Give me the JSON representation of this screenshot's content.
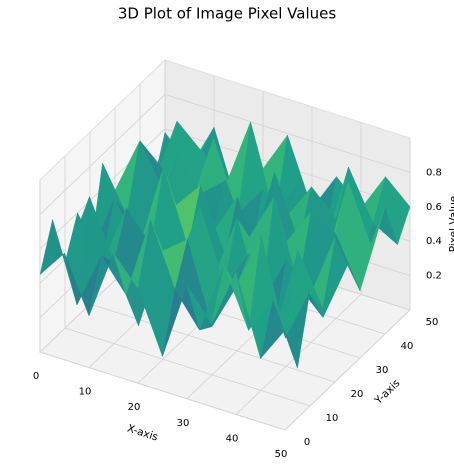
{
  "chart_data": {
    "type": "surface",
    "title": "3D Plot of Image Pixel Values",
    "xlabel": "X-axis",
    "ylabel": "Y-axis",
    "zlabel": "Pixel Value",
    "colormap": "viridis",
    "x": [
      0,
      5,
      10,
      15,
      20,
      25,
      30,
      35,
      40,
      45,
      50
    ],
    "y": [
      0,
      5,
      10,
      15,
      20,
      25,
      30,
      35,
      40,
      45,
      50
    ],
    "z": [
      [
        0.45,
        0.62,
        0.3,
        0.71,
        0.55,
        0.2,
        0.66,
        0.48,
        0.83,
        0.37,
        0.58
      ],
      [
        0.7,
        0.25,
        0.58,
        0.4,
        0.88,
        0.52,
        0.33,
        0.75,
        0.42,
        0.64,
        0.29
      ],
      [
        0.38,
        0.81,
        0.47,
        0.15,
        0.63,
        0.74,
        0.28,
        0.56,
        0.9,
        0.35,
        0.67
      ],
      [
        0.6,
        0.34,
        0.72,
        0.55,
        0.27,
        0.86,
        0.45,
        0.68,
        0.23,
        0.79,
        0.5
      ],
      [
        0.28,
        0.66,
        0.42,
        0.93,
        0.51,
        0.36,
        0.77,
        0.31,
        0.62,
        0.46,
        0.84
      ],
      [
        0.75,
        0.49,
        0.18,
        0.64,
        0.8,
        0.44,
        0.59,
        0.87,
        0.4,
        0.26,
        0.61
      ],
      [
        0.52,
        0.85,
        0.6,
        0.33,
        0.46,
        0.71,
        0.22,
        0.54,
        0.76,
        0.68,
        0.39
      ],
      [
        0.41,
        0.3,
        0.78,
        0.57,
        0.69,
        0.25,
        0.83,
        0.47,
        0.35,
        0.91,
        0.56
      ],
      [
        0.67,
        0.54,
        0.36,
        0.82,
        0.43,
        0.61,
        0.5,
        0.72,
        0.58,
        0.32,
        0.74
      ],
      [
        0.33,
        0.76,
        0.63,
        0.48,
        0.89,
        0.38,
        0.65,
        0.29,
        0.81,
        0.53,
        0.45
      ],
      [
        0.58,
        0.42,
        0.7,
        0.27,
        0.55,
        0.79,
        0.41,
        0.64,
        0.5,
        0.73,
        0.6
      ]
    ],
    "xlim": [
      0,
      50
    ],
    "ylim": [
      0,
      50
    ],
    "zlim": [
      0,
      1
    ],
    "xticks": [
      0,
      10,
      20,
      30,
      40,
      50
    ],
    "yticks": [
      0,
      10,
      20,
      30,
      40,
      50
    ],
    "zticks": [
      0.2,
      0.4,
      0.6,
      0.8
    ],
    "grid": true
  }
}
